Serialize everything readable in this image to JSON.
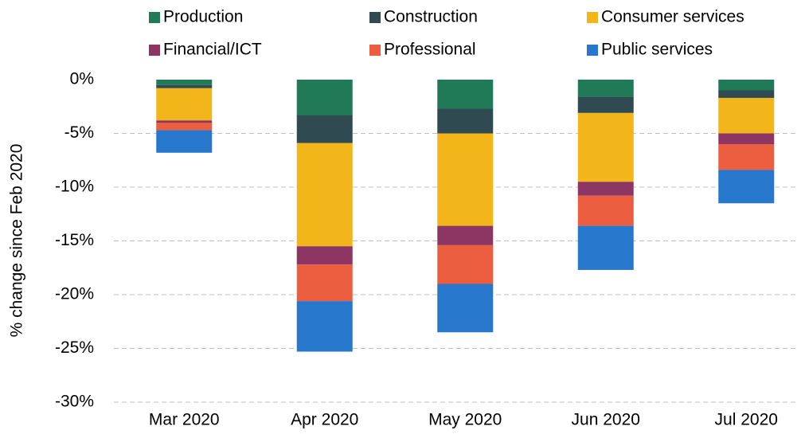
{
  "chart_data": {
    "type": "stacked_bar",
    "y_label": "% change since Feb 2020",
    "categories": [
      "Mar 2020",
      "Apr 2020",
      "May 2020",
      "Jun 2020",
      "Jul 2020"
    ],
    "series": [
      {
        "name": "Production",
        "color": "#217a57",
        "values": [
          -0.5,
          -3.3,
          -2.7,
          -1.6,
          -1.0
        ]
      },
      {
        "name": "Construction",
        "color": "#2f4a50",
        "values": [
          -0.3,
          -2.6,
          -2.3,
          -1.5,
          -0.7
        ]
      },
      {
        "name": "Consumer services",
        "color": "#f2b51a",
        "values": [
          -3.0,
          -9.6,
          -8.6,
          -6.4,
          -3.3
        ]
      },
      {
        "name": "Financial/ICT",
        "color": "#8e3663",
        "values": [
          -0.2,
          -1.7,
          -1.8,
          -1.3,
          -1.0
        ]
      },
      {
        "name": "Professional",
        "color": "#ec5e40",
        "values": [
          -0.7,
          -3.4,
          -3.6,
          -2.8,
          -2.4
        ]
      },
      {
        "name": "Public services",
        "color": "#2777cc",
        "values": [
          -2.1,
          -4.7,
          -4.5,
          -4.1,
          -3.1
        ]
      }
    ],
    "ylim": [
      -30,
      0
    ],
    "yticks": [
      {
        "value": 0,
        "label": "0%"
      },
      {
        "value": -5,
        "label": "-5%"
      },
      {
        "value": -10,
        "label": "-10%"
      },
      {
        "value": -15,
        "label": "-15%"
      },
      {
        "value": -20,
        "label": "-20%"
      },
      {
        "value": -25,
        "label": "-25%"
      },
      {
        "value": -30,
        "label": "-30%"
      }
    ],
    "grid": true
  }
}
